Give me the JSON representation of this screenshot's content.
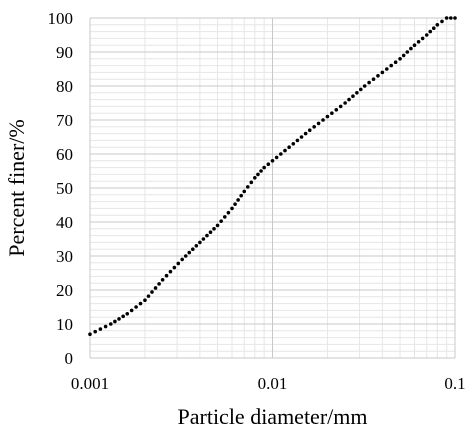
{
  "chart_data": {
    "type": "scatter",
    "title": "",
    "xlabel": "Particle diameter/mm",
    "ylabel": "Percent finer/%",
    "x_scale": "log",
    "xlim": [
      0.001,
      0.1
    ],
    "ylim": [
      0,
      100
    ],
    "x_ticks": [
      "0.001",
      "0.01",
      "0.1"
    ],
    "y_ticks": [
      "0",
      "10",
      "20",
      "30",
      "40",
      "50",
      "60",
      "70",
      "80",
      "90",
      "100"
    ],
    "grid": true,
    "legend": "none",
    "series": [
      {
        "color": "#000000",
        "marker": "dotted-line",
        "x": [
          0.001,
          0.0013,
          0.0016,
          0.002,
          0.0025,
          0.0032,
          0.004,
          0.005,
          0.006,
          0.007,
          0.008,
          0.009,
          0.01,
          0.013,
          0.016,
          0.02,
          0.025,
          0.032,
          0.04,
          0.05,
          0.06,
          0.07,
          0.08,
          0.09,
          0.1
        ],
        "y": [
          7,
          10,
          13,
          17,
          23,
          29,
          34,
          39,
          44,
          49,
          53,
          56,
          58,
          63,
          67,
          71,
          75,
          80,
          84,
          88,
          92,
          95,
          98,
          100,
          100
        ]
      }
    ]
  }
}
